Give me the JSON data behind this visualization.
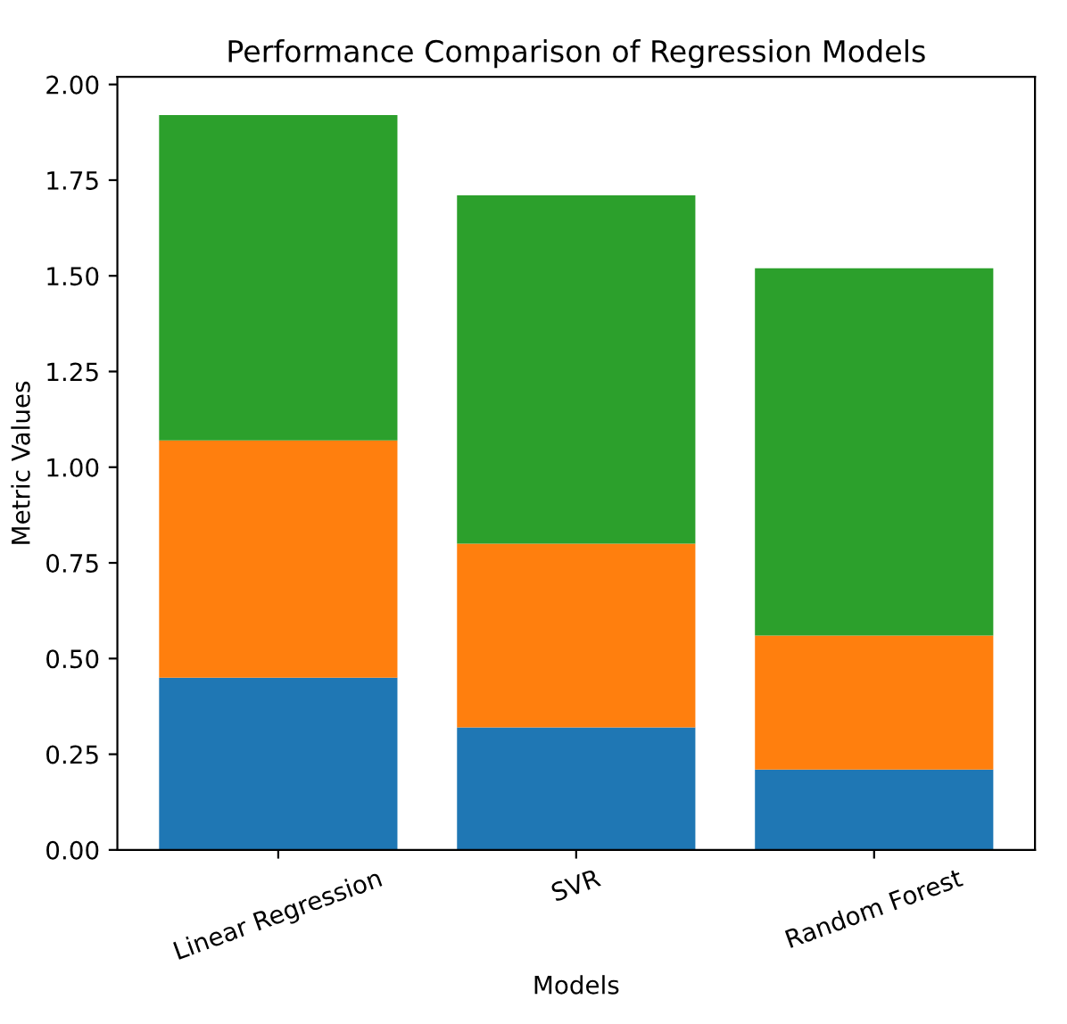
{
  "chart_data": {
    "type": "bar",
    "stacked": true,
    "title": "Performance Comparison of Regression Models",
    "xlabel": "Models",
    "ylabel": "Metric Values",
    "categories": [
      "Linear Regression",
      "SVR",
      "Random Forest"
    ],
    "series": [
      {
        "color": "#1f77b4",
        "values": [
          0.45,
          0.32,
          0.21
        ]
      },
      {
        "color": "#ff7f0e",
        "values": [
          0.62,
          0.48,
          0.35
        ]
      },
      {
        "color": "#2ca02c",
        "values": [
          0.85,
          0.91,
          0.96
        ]
      }
    ],
    "ylim": [
      0,
      2.02
    ],
    "yticks": [
      {
        "value": 0,
        "label": "0.00"
      },
      {
        "value": 0.25,
        "label": "0.25"
      },
      {
        "value": 0.5,
        "label": "0.50"
      },
      {
        "value": 0.75,
        "label": "0.75"
      },
      {
        "value": 1,
        "label": "1.00"
      },
      {
        "value": 1.25,
        "label": "1.25"
      },
      {
        "value": 1.5,
        "label": "1.50"
      },
      {
        "value": 1.75,
        "label": "1.75"
      },
      {
        "value": 2,
        "label": "2.00"
      }
    ],
    "grid": false,
    "legend": false
  }
}
